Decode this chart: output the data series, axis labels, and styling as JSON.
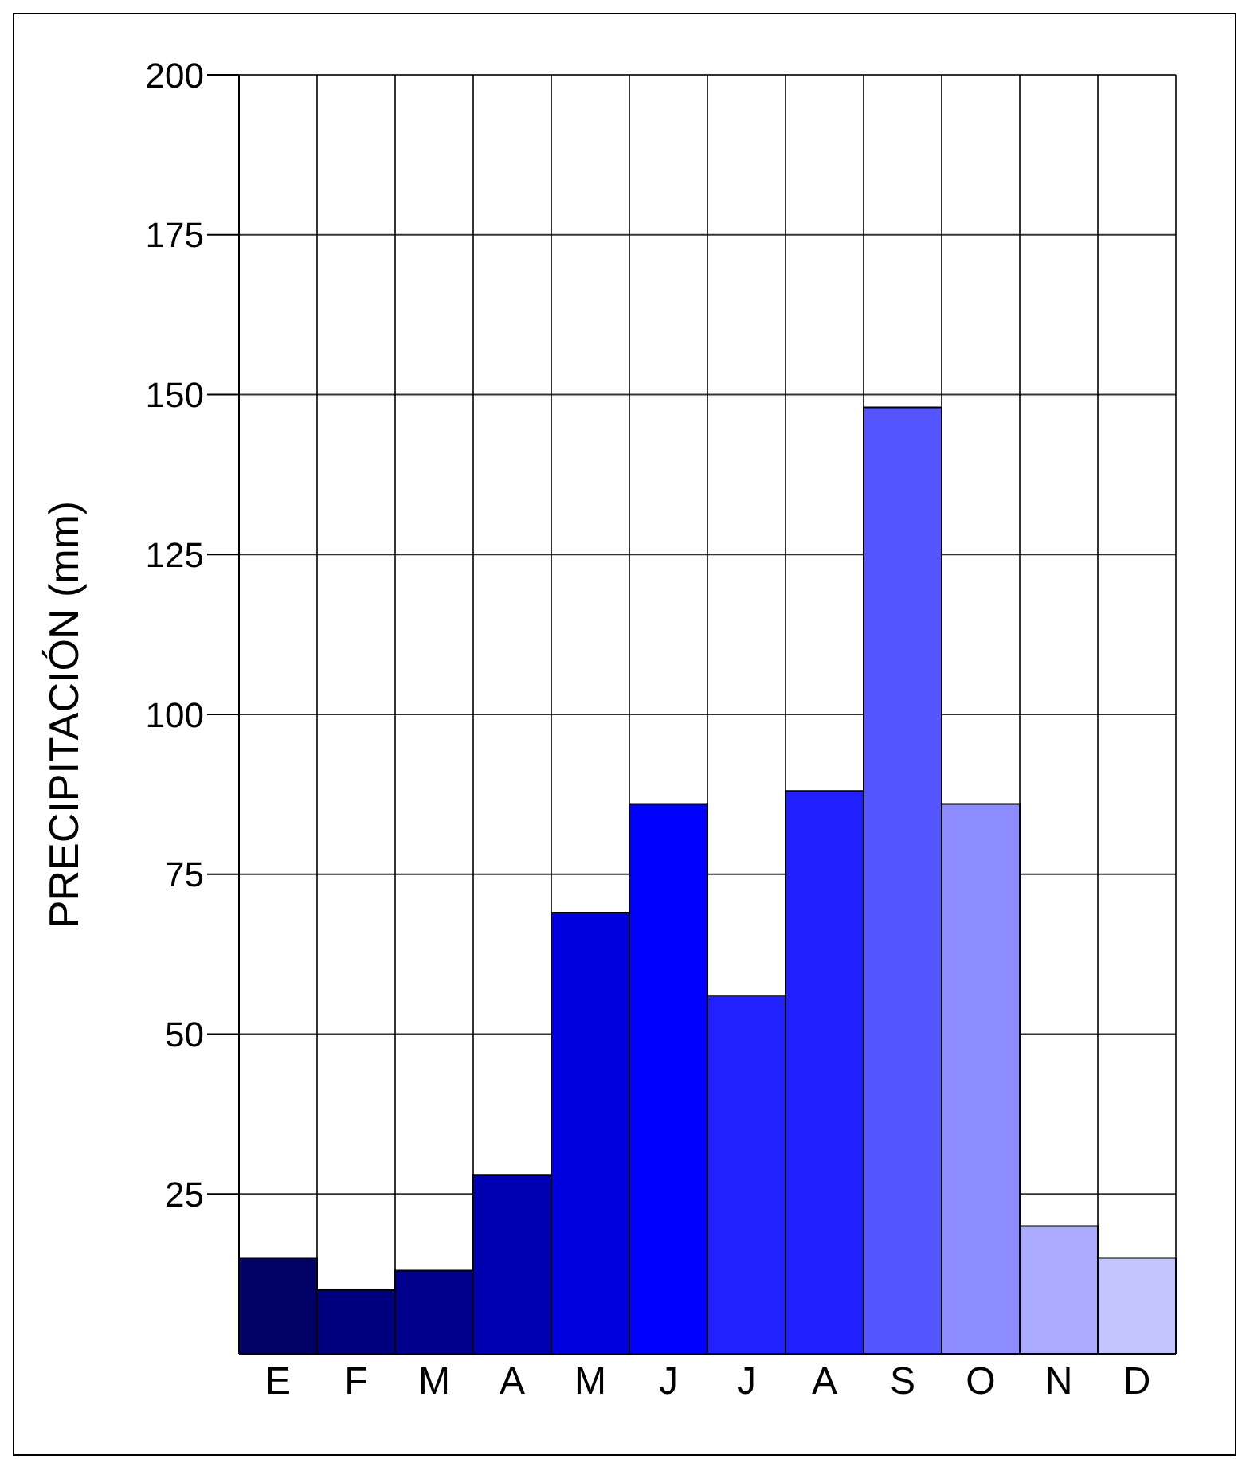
{
  "chart_data": {
    "type": "bar",
    "ylabel": "PRECIPITACIÓN (mm)",
    "categories": [
      "E",
      "F",
      "M",
      "A",
      "M",
      "J",
      "J",
      "A",
      "S",
      "O",
      "N",
      "D"
    ],
    "values": [
      15,
      10,
      13,
      28,
      69,
      86,
      56,
      88,
      148,
      86,
      20,
      15
    ],
    "colors": [
      "#000066",
      "#00007f",
      "#00008c",
      "#0000b3",
      "#0000dd",
      "#0000ff",
      "#2222ff",
      "#1f1fff",
      "#5555ff",
      "#8c8cff",
      "#aaaaff",
      "#c4c4ff"
    ],
    "ylim": [
      0,
      200
    ],
    "yticks": [
      25,
      50,
      75,
      100,
      125,
      150,
      175,
      200
    ],
    "grid": true
  }
}
